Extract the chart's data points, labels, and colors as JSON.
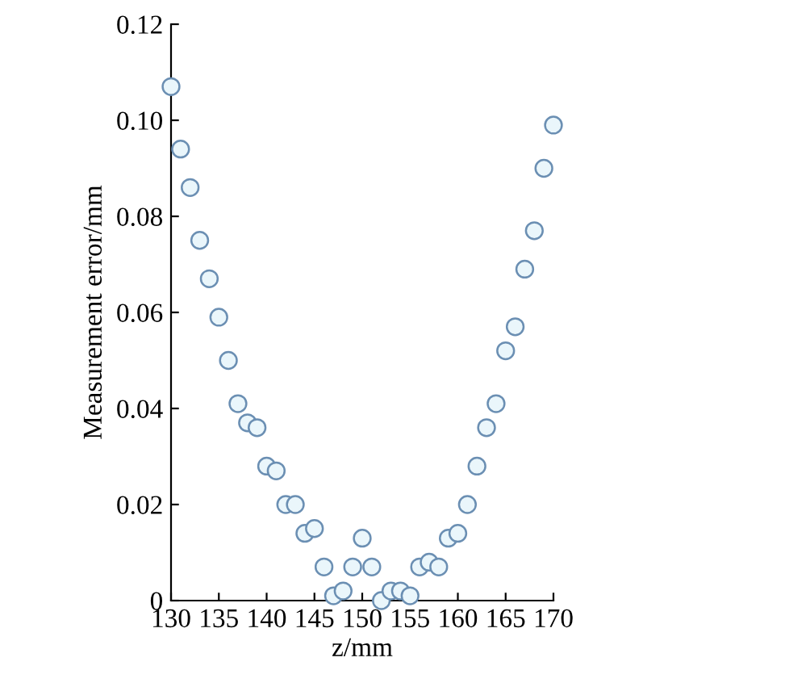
{
  "chart_data": {
    "type": "scatter",
    "xlabel": "z/mm",
    "ylabel": "Measurement error/mm",
    "x": [
      130,
      131,
      132,
      133,
      134,
      135,
      136,
      137,
      138,
      139,
      140,
      141,
      142,
      143,
      144,
      145,
      146,
      147,
      148,
      149,
      150,
      151,
      152,
      153,
      154,
      155,
      156,
      157,
      158,
      159,
      160,
      161,
      162,
      163,
      164,
      165,
      166,
      167,
      168,
      169,
      170
    ],
    "values": [
      0.107,
      0.094,
      0.086,
      0.075,
      0.067,
      0.059,
      0.05,
      0.041,
      0.037,
      0.036,
      0.028,
      0.027,
      0.02,
      0.02,
      0.014,
      0.015,
      0.007,
      0.001,
      0.002,
      0.007,
      0.013,
      0.007,
      0.0,
      0.002,
      0.002,
      0.001,
      0.007,
      0.008,
      0.007,
      0.013,
      0.014,
      0.02,
      0.028,
      0.036,
      0.041,
      0.052,
      0.057,
      0.069,
      0.077,
      0.09,
      0.099
    ],
    "color": "#6b8fb3",
    "marker": "circle",
    "xlim": [
      130,
      170
    ],
    "xticks": [
      130,
      135,
      140,
      145,
      150,
      155,
      160,
      165,
      170
    ],
    "ylim": [
      0,
      0.12
    ],
    "yticks": [
      0,
      {
        "value": 0.02,
        "label": "0.02"
      },
      {
        "value": 0.04,
        "label": "0.04"
      },
      {
        "value": 0.06,
        "label": "0.06"
      },
      {
        "value": 0.08,
        "label": "0.08"
      },
      {
        "value": 0.1,
        "label": "0.10"
      },
      {
        "value": 0.12,
        "label": "0.12"
      }
    ],
    "grid": false,
    "legend": false
  }
}
